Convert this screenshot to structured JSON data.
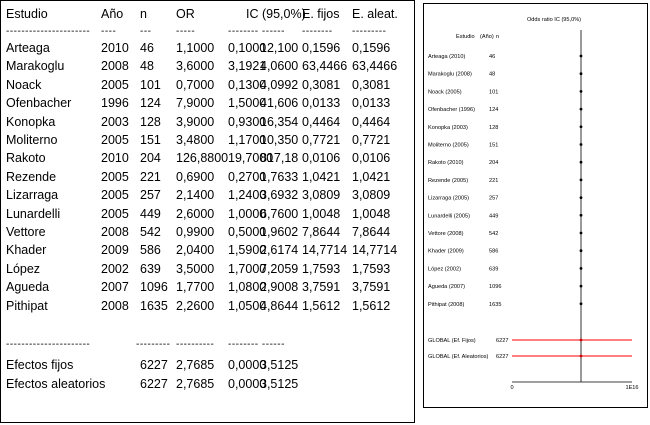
{
  "table": {
    "headers": [
      "Estudio",
      "Año",
      "n",
      "OR",
      "IC (95,0%)",
      "E. fijos",
      "E. aleat."
    ],
    "dash_headers": [
      "----------------------",
      "----",
      "---",
      "-----",
      "-------- ------",
      "--------",
      "---------"
    ],
    "rows": [
      [
        "Arteaga",
        "2010",
        "46",
        "1,1000",
        "0,1000",
        "12,100",
        "0,1596",
        "0,1596"
      ],
      [
        "Marakoglu",
        "2008",
        "48",
        "3,6000",
        "3,1921",
        "4,0600",
        "63,4466",
        "63,4466"
      ],
      [
        "Noack",
        "2005",
        "101",
        "0,7000",
        "0,1300",
        "4,0992",
        "0,3081",
        "0,3081"
      ],
      [
        "Ofenbacher",
        "1996",
        "124",
        "7,9000",
        "1,5000",
        "41,606",
        "0,0133",
        "0,0133"
      ],
      [
        "Konopka",
        "2003",
        "128",
        "3,9000",
        "0,9300",
        "16,354",
        "0,4464",
        "0,4464"
      ],
      [
        "Moliterno",
        "2005",
        "151",
        "3,4800",
        "1,1700",
        "10,350",
        "0,7721",
        "0,7721"
      ],
      [
        "Rakoto",
        "2010",
        "204",
        "126,8800",
        "19,7000",
        "817,18",
        "0,0106",
        "0,0106"
      ],
      [
        "Rezende",
        "2005",
        "221",
        "0,6900",
        "0,2700",
        "1,7633",
        "1,0421",
        "1,0421"
      ],
      [
        "Lizarraga",
        "2005",
        "257",
        "2,1400",
        "1,2400",
        "3,6932",
        "3,0809",
        "3,0809"
      ],
      [
        "Lunardelli",
        "2005",
        "449",
        "2,6000",
        "1,0000",
        "6,7600",
        "1,0048",
        "1,0048"
      ],
      [
        "Vettore",
        "2008",
        "542",
        "0,9900",
        "0,5000",
        "1,9602",
        "7,8644",
        "7,8644"
      ],
      [
        "Khader",
        "2009",
        "586",
        "2,0400",
        "1,5900",
        "2,6174",
        "14,7714",
        "14,7714"
      ],
      [
        "López",
        "2002",
        "639",
        "3,5000",
        "1,7000",
        "7,2059",
        "1,7593",
        "1,7593"
      ],
      [
        "Agueda",
        "2007",
        "1096",
        "1,7700",
        "1,0800",
        "2,9008",
        "3,7591",
        "3,7591"
      ],
      [
        "Pithipat",
        "2008",
        "1635",
        "2,2600",
        "1,0500",
        "4,8644",
        "1,5612",
        "1,5612"
      ]
    ],
    "dash_summary": [
      "----------------------",
      "---------",
      "----------",
      "-------- ------"
    ],
    "summary": [
      [
        "Efectos fijos",
        "6227",
        "2,7685",
        "0,0000",
        "3,5125"
      ],
      [
        "Efectos aleatorios",
        "6227",
        "2,7685",
        "0,0000",
        "3,5125"
      ]
    ]
  },
  "forest_plot": {
    "title": "Odds ratio IC (95,0%)",
    "col_study": "Estudio",
    "col_year": "(Año)",
    "col_n": "n",
    "studies": [
      {
        "label": "Arteaga (2010)",
        "n": "46"
      },
      {
        "label": "Marakoglu (2008)",
        "n": "48"
      },
      {
        "label": "Noack (2005)",
        "n": "101"
      },
      {
        "label": "Ofenbacher (1996)",
        "n": "124"
      },
      {
        "label": "Konopka (2003)",
        "n": "128"
      },
      {
        "label": "Moliterno (2005)",
        "n": "151"
      },
      {
        "label": "Rakoto (2010)",
        "n": "204"
      },
      {
        "label": "Rezende (2005)",
        "n": "221"
      },
      {
        "label": "Lizarraga (2005)",
        "n": "257"
      },
      {
        "label": "Lunardelli (2005)",
        "n": "449"
      },
      {
        "label": "Vettore (2008)",
        "n": "542"
      },
      {
        "label": "Khader (2009)",
        "n": "586"
      },
      {
        "label": "López (2002)",
        "n": "639"
      },
      {
        "label": "Agueda (2007)",
        "n": "1096"
      },
      {
        "label": "Pithipat (2008)",
        "n": "1635"
      }
    ],
    "global": [
      {
        "label": "GLOBAL (Ef. Fijos)",
        "n": "6227"
      },
      {
        "label": "GLOBAL (Ef. Aleatorios)",
        "n": "6227"
      }
    ],
    "axis_min": "0",
    "axis_max": "1E16",
    "colors": {
      "global_line": "#ff0000",
      "global_point": "#cc0000",
      "axis": "#000000",
      "point": "#000000"
    }
  }
}
